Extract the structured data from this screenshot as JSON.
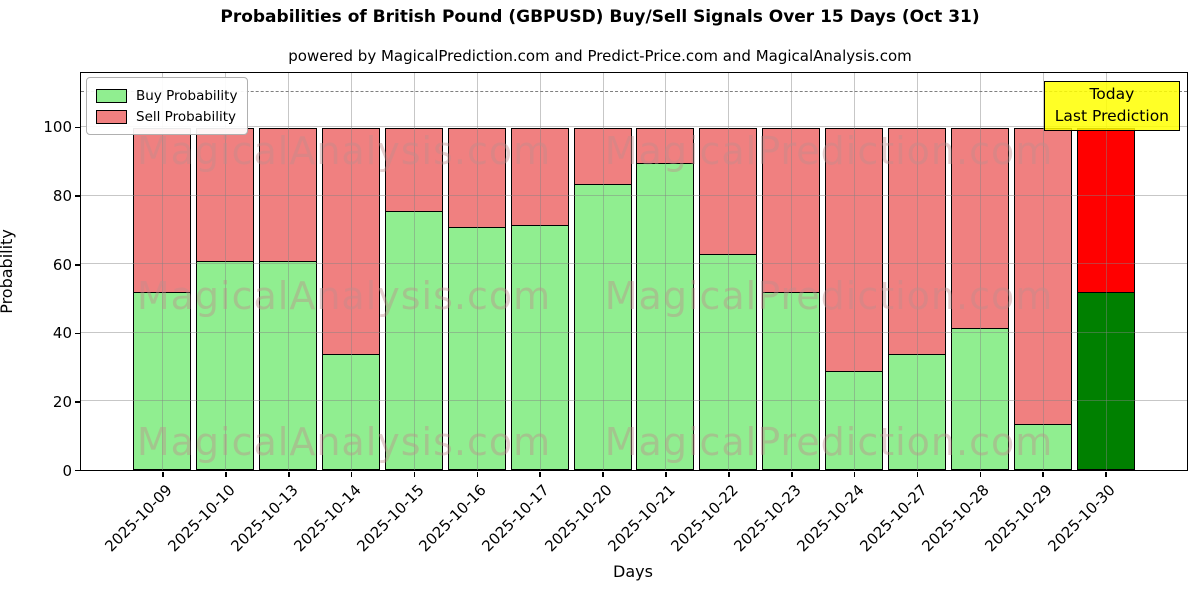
{
  "title": "Probabilities of British Pound (GBPUSD) Buy/Sell Signals Over 15 Days (Oct 31)",
  "subtitle": "powered by MagicalPrediction.com and Predict-Price.com and MagicalAnalysis.com",
  "legend": {
    "buy_label": "Buy Probability",
    "sell_label": "Sell Probability"
  },
  "annotation_box": {
    "line1": "Today",
    "line2": "Last Prediction"
  },
  "watermarks": {
    "left_text": "MagicalAnalysis.com",
    "right_text": "MagicalPrediction.com",
    "color": "rgba(190,140,140,0.42)"
  },
  "colors": {
    "buy": "#90ee90",
    "sell": "#f08080",
    "buy_today": "#008000",
    "sell_today": "#ff0000",
    "annotation_bg": "#ffff00",
    "grid": "#b0b0b0",
    "dashed_line": "#7f7f7f"
  },
  "chart_data": {
    "type": "bar",
    "stacked": true,
    "title": "Probabilities of British Pound (GBPUSD) Buy/Sell Signals Over 15 Days (Oct 31)",
    "xlabel": "Days",
    "ylabel": "Probability",
    "categories": [
      "2025-10-09",
      "2025-10-10",
      "2025-10-13",
      "2025-10-14",
      "2025-10-15",
      "2025-10-16",
      "2025-10-17",
      "2025-10-20",
      "2025-10-21",
      "2025-10-22",
      "2025-10-23",
      "2025-10-24",
      "2025-10-27",
      "2025-10-28",
      "2025-10-29",
      "2025-10-30"
    ],
    "series": [
      {
        "name": "Buy Probability",
        "values": [
          52,
          61,
          61,
          34,
          75.5,
          71,
          71.5,
          83.5,
          89.5,
          63,
          52,
          29,
          34,
          41.5,
          13.5,
          52
        ]
      },
      {
        "name": "Sell Probability",
        "values": [
          48,
          39,
          39,
          66,
          24.5,
          29,
          28.5,
          16.5,
          10.5,
          37,
          48,
          71,
          66,
          58.5,
          86.5,
          48
        ]
      }
    ],
    "today_index": 15,
    "yticks": [
      0,
      20,
      40,
      60,
      80,
      100
    ],
    "ylim": [
      0,
      115.7
    ],
    "dashed_line_y": 110.5,
    "grid": true,
    "legend_position": "upper left"
  }
}
